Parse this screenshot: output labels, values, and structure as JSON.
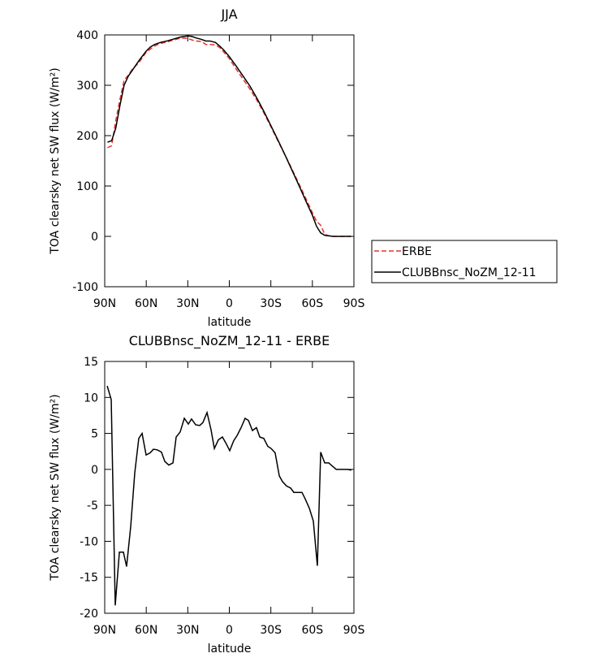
{
  "chart_data": [
    {
      "type": "line",
      "title": "JJA",
      "xlabel": "latitude",
      "ylabel": "TOA clearsky net SW flux (W/m²)",
      "x": [
        88,
        85,
        82,
        79,
        76,
        73,
        70,
        65,
        60,
        57,
        54,
        50,
        45,
        40,
        35,
        30,
        27,
        24,
        20,
        17,
        14,
        10,
        7,
        4,
        0,
        -5,
        -10,
        -15,
        -20,
        -25,
        -30,
        -35,
        -40,
        -45,
        -50,
        -55,
        -60,
        -63,
        -66,
        -69,
        -72,
        -75,
        -80,
        -85,
        -88
      ],
      "series": [
        {
          "name": "ERBE",
          "color": "#e8322a",
          "dashed": true,
          "values": [
            176,
            180,
            230,
            272,
            310,
            320,
            332,
            346,
            366,
            372,
            378,
            383,
            386,
            390,
            394,
            393,
            390,
            388,
            387,
            381,
            381,
            380,
            375,
            366,
            353,
            332,
            312,
            292,
            270,
            245,
            218,
            190,
            163,
            135,
            106,
            77,
            47,
            30,
            22,
            4,
            1,
            0,
            0,
            0,
            0
          ]
        },
        {
          "name": "CLUBBnsc_NoZM_12-11",
          "color": "#000000",
          "dashed": false,
          "values": [
            187,
            190,
            215,
            260,
            300,
            318,
            330,
            350,
            368,
            376,
            381,
            385,
            388,
            392,
            396,
            398,
            397,
            394,
            391,
            388,
            388,
            385,
            378,
            370,
            357,
            338,
            318,
            298,
            274,
            248,
            220,
            192,
            163,
            133,
            103,
            72,
            42,
            20,
            7,
            2,
            1,
            0,
            0,
            0,
            0
          ]
        }
      ],
      "xlim": [
        90,
        -90
      ],
      "xticks": [
        {
          "value": 90,
          "label": "90N"
        },
        {
          "value": 60,
          "label": "60N"
        },
        {
          "value": 30,
          "label": "30N"
        },
        0,
        {
          "value": -30,
          "label": "30S"
        },
        {
          "value": -60,
          "label": "60S"
        },
        {
          "value": -90,
          "label": "90S"
        }
      ],
      "ylim": [
        -100,
        400
      ],
      "yticks": [
        -100,
        0,
        100,
        200,
        300,
        400
      ],
      "legend": "right"
    },
    {
      "type": "line",
      "title": "CLUBBnsc_NoZM_12-11 - ERBE",
      "xlabel": "latitude",
      "ylabel": "TOA clearsky net SW flux (W/m²)",
      "x": [
        88.2,
        85.3,
        82.4,
        79.4,
        76.5,
        74.2,
        71.2,
        68.3,
        65.4,
        63.0,
        60.1,
        57.2,
        54.8,
        51.9,
        49.0,
        46.6,
        43.7,
        40.7,
        38.4,
        35.5,
        32.5,
        29.6,
        27.3,
        24.3,
        21.4,
        19.1,
        16.1,
        13.2,
        10.8,
        7.9,
        5.0,
        2.6,
        -0.3,
        -3.2,
        -5.6,
        -8.5,
        -11.4,
        -13.8,
        -16.7,
        -19.6,
        -22.0,
        -24.9,
        -27.8,
        -30.2,
        -33.1,
        -36.1,
        -38.4,
        -41.3,
        -44.3,
        -46.6,
        -49.5,
        -52.5,
        -54.8,
        -57.8,
        -60.7,
        -63.6,
        -66.0,
        -68.9,
        -71.8,
        -74.2,
        -77.2,
        -80.0,
        -82.4,
        -85.3,
        -88.2
      ],
      "values": [
        11.6,
        9.7,
        -18.9,
        -11.5,
        -11.5,
        -13.5,
        -7.9,
        -0.5,
        4.3,
        5.0,
        2.0,
        2.3,
        2.8,
        2.7,
        2.4,
        1.1,
        0.6,
        0.9,
        4.5,
        5.2,
        7.1,
        6.3,
        7.0,
        6.2,
        6.1,
        6.5,
        7.9,
        5.5,
        2.9,
        4.1,
        4.5,
        3.7,
        2.6,
        4.0,
        4.7,
        5.8,
        7.1,
        6.8,
        5.4,
        5.8,
        4.5,
        4.3,
        3.2,
        2.9,
        2.3,
        -0.9,
        -1.7,
        -2.3,
        -2.6,
        -3.2,
        -3.2,
        -3.2,
        -4.1,
        -5.4,
        -7.2,
        -13.4,
        2.4,
        0.9,
        0.9,
        0.5,
        0.0,
        0.0,
        0.0,
        0.0,
        -0.1
      ],
      "color": "#000000",
      "xlim": [
        90,
        -90
      ],
      "xticks": [
        {
          "value": 90,
          "label": "90N"
        },
        {
          "value": 60,
          "label": "60N"
        },
        {
          "value": 30,
          "label": "30N"
        },
        0,
        {
          "value": -30,
          "label": "30S"
        },
        {
          "value": -60,
          "label": "60S"
        },
        {
          "value": -90,
          "label": "90S"
        }
      ],
      "ylim": [
        -20,
        15
      ],
      "yticks": [
        -20,
        -15,
        -10,
        -5,
        0,
        5,
        10,
        15
      ]
    }
  ]
}
